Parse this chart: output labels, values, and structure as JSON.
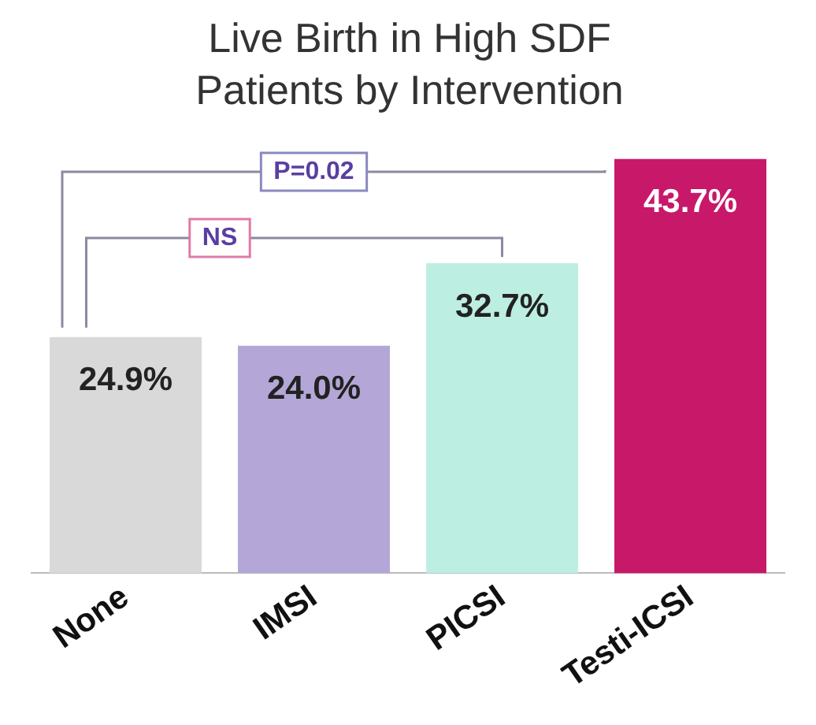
{
  "chart_data": {
    "type": "bar",
    "title": "Live Birth in High SDF Patients by Intervention",
    "categories": [
      "None",
      "IMSI",
      "PICSI",
      "Testi-ICSI"
    ],
    "values": [
      24.9,
      24.0,
      32.7,
      43.7
    ],
    "colors": [
      "#d9d9d9",
      "#b4a7d8",
      "#bdeee2",
      "#c8186a"
    ],
    "value_labels": [
      "24.9%",
      "24.0%",
      "32.7%",
      "43.7%"
    ],
    "tick_labels": "x",
    "grid": false,
    "legend": false,
    "annotations": [
      "P=0.02",
      "NS"
    ]
  }
}
